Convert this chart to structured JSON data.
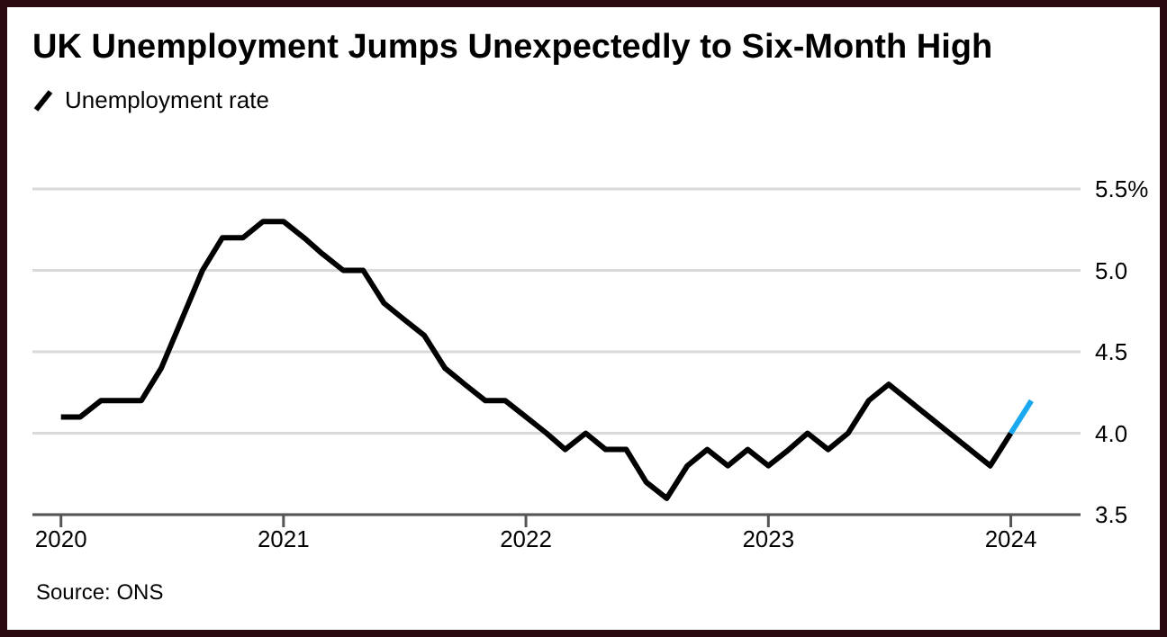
{
  "chart_data": {
    "type": "line",
    "title": "UK Unemployment Jumps Unexpectedly to Six-Month High",
    "series": [
      {
        "name": "Unemployment rate",
        "color": "#000000",
        "x": [
          "2020-02",
          "2020-03",
          "2020-04",
          "2020-05",
          "2020-06",
          "2020-07",
          "2020-08",
          "2020-09",
          "2020-10",
          "2020-11",
          "2020-12",
          "2021-01",
          "2021-02",
          "2021-03",
          "2021-04",
          "2021-05",
          "2021-06",
          "2021-07",
          "2021-08",
          "2021-09",
          "2021-10",
          "2021-11",
          "2021-12",
          "2022-01",
          "2022-02",
          "2022-03",
          "2022-04",
          "2022-05",
          "2022-06",
          "2022-07",
          "2022-08",
          "2022-09",
          "2022-10",
          "2022-11",
          "2022-12",
          "2023-01",
          "2023-02",
          "2023-03",
          "2023-04",
          "2023-05",
          "2023-06",
          "2023-07",
          "2023-12",
          "2024-01"
        ],
        "values": [
          4.1,
          4.1,
          4.2,
          4.2,
          4.2,
          4.4,
          4.7,
          5.0,
          5.2,
          5.2,
          5.3,
          5.3,
          5.2,
          5.1,
          5.0,
          5.0,
          4.8,
          4.7,
          4.6,
          4.4,
          4.3,
          4.2,
          4.2,
          4.1,
          4.0,
          3.9,
          4.0,
          3.9,
          3.9,
          3.7,
          3.6,
          3.8,
          3.9,
          3.8,
          3.9,
          3.8,
          3.9,
          4.0,
          3.9,
          4.0,
          4.2,
          4.3,
          3.8,
          4.0
        ]
      },
      {
        "color": "#1aa9f0",
        "x": [
          "2024-01",
          "2024-02"
        ],
        "values": [
          4.0,
          4.2
        ]
      }
    ],
    "xlim": [
      "2019-12-20",
      "2024-04-15"
    ],
    "xticks": [
      {
        "value": "2020-02",
        "label": "2020"
      },
      "2021",
      "2022",
      "2023",
      "2024"
    ],
    "ylim": [
      3.5,
      5.5
    ],
    "yticks": [
      {
        "value": 3.5,
        "label": "3.5"
      },
      {
        "value": 4.0,
        "label": "4.0"
      },
      {
        "value": 4.5,
        "label": "4.5"
      },
      {
        "value": 5.0,
        "label": "5.0"
      },
      {
        "value": 5.5,
        "label": "5.5%"
      }
    ],
    "grid": "y",
    "legend": "top left",
    "marker": "none",
    "line_style": "solid",
    "annotations": [
      "Source: ONS"
    ]
  }
}
